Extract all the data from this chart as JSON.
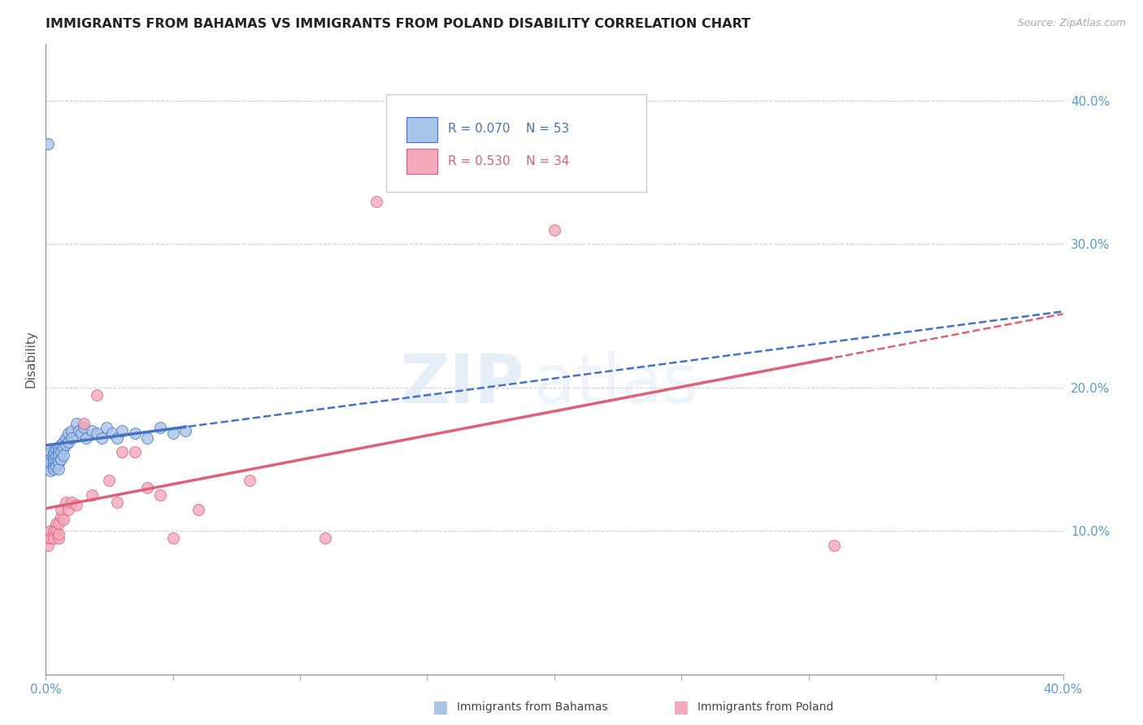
{
  "title": "IMMIGRANTS FROM BAHAMAS VS IMMIGRANTS FROM POLAND DISABILITY CORRELATION CHART",
  "source": "Source: ZipAtlas.com",
  "ylabel": "Disability",
  "ytick_labels": [
    "10.0%",
    "20.0%",
    "30.0%",
    "40.0%"
  ],
  "ytick_values": [
    0.1,
    0.2,
    0.3,
    0.4
  ],
  "xlim": [
    0.0,
    0.4
  ],
  "ylim": [
    0.0,
    0.44
  ],
  "xtick_positions": [
    0.0,
    0.05,
    0.1,
    0.15,
    0.2,
    0.25,
    0.3,
    0.35,
    0.4
  ],
  "legend_r_bahamas": "R = 0.070",
  "legend_n_bahamas": "N = 53",
  "legend_r_poland": "R = 0.530",
  "legend_n_poland": "N = 34",
  "bahamas_color": "#a8c4e8",
  "poland_color": "#f4a8bc",
  "bahamas_line_color": "#4472c4",
  "poland_line_color": "#e0607a",
  "bahamas_x": [
    0.001,
    0.001,
    0.001,
    0.002,
    0.002,
    0.002,
    0.002,
    0.002,
    0.003,
    0.003,
    0.003,
    0.003,
    0.003,
    0.003,
    0.004,
    0.004,
    0.004,
    0.004,
    0.005,
    0.005,
    0.005,
    0.005,
    0.005,
    0.006,
    0.006,
    0.006,
    0.007,
    0.007,
    0.007,
    0.008,
    0.008,
    0.009,
    0.009,
    0.01,
    0.01,
    0.012,
    0.013,
    0.014,
    0.015,
    0.016,
    0.018,
    0.02,
    0.022,
    0.024,
    0.026,
    0.028,
    0.03,
    0.035,
    0.04,
    0.045,
    0.05,
    0.055,
    0.001
  ],
  "bahamas_y": [
    0.15,
    0.148,
    0.152,
    0.155,
    0.15,
    0.145,
    0.148,
    0.142,
    0.155,
    0.153,
    0.15,
    0.148,
    0.145,
    0.143,
    0.157,
    0.152,
    0.148,
    0.145,
    0.158,
    0.155,
    0.152,
    0.148,
    0.143,
    0.16,
    0.155,
    0.15,
    0.162,
    0.158,
    0.153,
    0.165,
    0.16,
    0.168,
    0.162,
    0.17,
    0.165,
    0.175,
    0.17,
    0.168,
    0.172,
    0.165,
    0.17,
    0.168,
    0.165,
    0.172,
    0.168,
    0.165,
    0.17,
    0.168,
    0.165,
    0.172,
    0.168,
    0.17,
    0.37
  ],
  "poland_x": [
    0.001,
    0.001,
    0.002,
    0.002,
    0.003,
    0.003,
    0.004,
    0.004,
    0.005,
    0.005,
    0.005,
    0.006,
    0.006,
    0.007,
    0.008,
    0.009,
    0.01,
    0.012,
    0.015,
    0.018,
    0.02,
    0.025,
    0.028,
    0.03,
    0.035,
    0.04,
    0.045,
    0.05,
    0.06,
    0.08,
    0.11,
    0.13,
    0.2,
    0.31
  ],
  "poland_y": [
    0.09,
    0.095,
    0.095,
    0.1,
    0.1,
    0.095,
    0.105,
    0.1,
    0.095,
    0.098,
    0.105,
    0.11,
    0.115,
    0.108,
    0.12,
    0.115,
    0.12,
    0.118,
    0.175,
    0.125,
    0.195,
    0.135,
    0.12,
    0.155,
    0.155,
    0.13,
    0.125,
    0.095,
    0.115,
    0.135,
    0.095,
    0.33,
    0.31,
    0.09
  ],
  "watermark_zip": "ZIP",
  "watermark_atlas": "atlas",
  "background_color": "#ffffff"
}
